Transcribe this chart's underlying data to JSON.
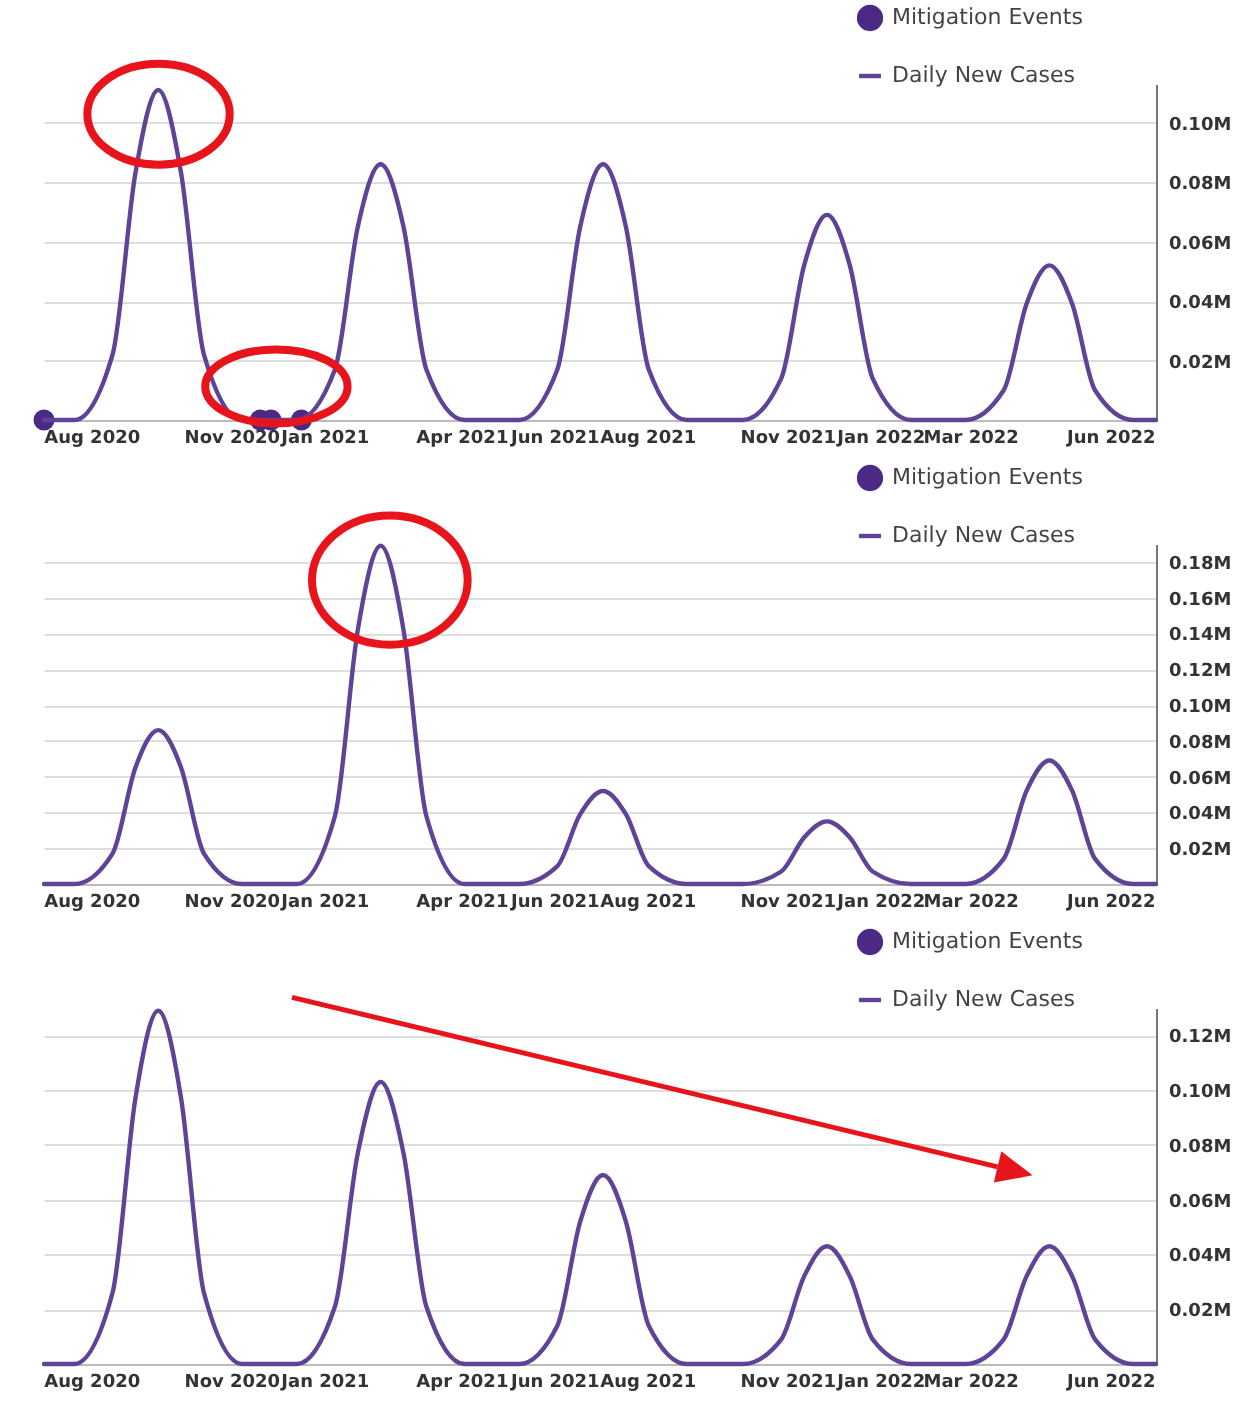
{
  "chart_data": [
    {
      "type": "line",
      "xlim": [
        "2020-07-01",
        "2022-07-01"
      ],
      "ylim": [
        0,
        113000
      ],
      "legend": "top right",
      "grid": "y",
      "xticks": [
        {
          "value": "2020-08-01",
          "label": "Aug 2020"
        },
        {
          "value": "2020-11-01",
          "label": "Nov 2020"
        },
        {
          "value": "2021-01-01",
          "label": "Jan 2021"
        },
        {
          "value": "2021-04-01",
          "label": "Apr 2021"
        },
        {
          "value": "2021-06-01",
          "label": "Jun 2021"
        },
        {
          "value": "2021-08-01",
          "label": "Aug 2021"
        },
        {
          "value": "2021-11-01",
          "label": "Nov 2021"
        },
        {
          "value": "2022-01-01",
          "label": "Jan 2022"
        },
        {
          "value": "2022-03-01",
          "label": "Mar 2022"
        },
        {
          "value": "2022-06-01",
          "label": "Jun 2022"
        }
      ],
      "yticks": [
        {
          "value": 20000,
          "label": "0.02M"
        },
        {
          "value": 40000,
          "label": "0.04M"
        },
        {
          "value": 60000,
          "label": "0.06M"
        },
        {
          "value": 80000,
          "label": "0.08M"
        },
        {
          "value": 100000,
          "label": "0.10M"
        }
      ],
      "series": [
        {
          "name": "Mitigation Events",
          "type": "scatter",
          "marker": "circle",
          "color": "#4b2a85",
          "x": [
            "2020-07-01",
            "2020-11-20",
            "2020-11-27",
            "2020-12-17"
          ],
          "values": [
            0,
            0,
            0,
            0
          ]
        },
        {
          "name": "Daily New Cases",
          "type": "line",
          "color": "#5e4396",
          "x": [
            "2020-07-01",
            "2020-07-21",
            "2020-08-15",
            "2020-08-30",
            "2020-09-14",
            "2020-09-29",
            "2020-10-14",
            "2020-11-08",
            "2020-12-14",
            "2021-01-08",
            "2021-01-23",
            "2021-02-07",
            "2021-02-22",
            "2021-03-09",
            "2021-04-03",
            "2021-05-09",
            "2021-06-03",
            "2021-06-18",
            "2021-07-03",
            "2021-07-18",
            "2021-08-02",
            "2021-08-27",
            "2021-10-03",
            "2021-10-28",
            "2021-11-12",
            "2021-11-27",
            "2021-12-12",
            "2021-12-27",
            "2022-01-21",
            "2022-02-26",
            "2022-03-23",
            "2022-04-07",
            "2022-04-22",
            "2022-05-07",
            "2022-05-22",
            "2022-06-16",
            "2022-07-01"
          ],
          "values": [
            0,
            0,
            22000,
            83000,
            111000,
            83000,
            22000,
            0,
            0,
            17000,
            65000,
            86000,
            65000,
            17000,
            0,
            0,
            17000,
            65000,
            86000,
            65000,
            17000,
            0,
            0,
            14000,
            52000,
            69000,
            52000,
            14000,
            0,
            0,
            10000,
            39000,
            52000,
            39000,
            10000,
            0,
            0
          ]
        }
      ]
    },
    {
      "type": "line",
      "xlim": [
        "2020-07-01",
        "2022-07-01"
      ],
      "ylim": [
        0,
        190000
      ],
      "legend": "top right",
      "grid": "y",
      "xticks": [
        {
          "value": "2020-08-01",
          "label": "Aug 2020"
        },
        {
          "value": "2020-11-01",
          "label": "Nov 2020"
        },
        {
          "value": "2021-01-01",
          "label": "Jan 2021"
        },
        {
          "value": "2021-04-01",
          "label": "Apr 2021"
        },
        {
          "value": "2021-06-01",
          "label": "Jun 2021"
        },
        {
          "value": "2021-08-01",
          "label": "Aug 2021"
        },
        {
          "value": "2021-11-01",
          "label": "Nov 2021"
        },
        {
          "value": "2022-01-01",
          "label": "Jan 2022"
        },
        {
          "value": "2022-03-01",
          "label": "Mar 2022"
        },
        {
          "value": "2022-06-01",
          "label": "Jun 2022"
        }
      ],
      "yticks": [
        {
          "value": 20000,
          "label": "0.02M"
        },
        {
          "value": 40000,
          "label": "0.04M"
        },
        {
          "value": 60000,
          "label": "0.06M"
        },
        {
          "value": 80000,
          "label": "0.08M"
        },
        {
          "value": 100000,
          "label": "0.10M"
        },
        {
          "value": 120000,
          "label": "0.12M"
        },
        {
          "value": 140000,
          "label": "0.14M"
        },
        {
          "value": 160000,
          "label": "0.16M"
        },
        {
          "value": 180000,
          "label": "0.18M"
        }
      ],
      "series": [
        {
          "name": "Mitigation Events",
          "type": "scatter",
          "marker": "circle",
          "color": "#4b2a85"
        },
        {
          "name": "Daily New Cases",
          "type": "line",
          "color": "#5e4396",
          "x": [
            "2020-07-01",
            "2020-07-21",
            "2020-08-15",
            "2020-08-30",
            "2020-09-14",
            "2020-09-29",
            "2020-10-14",
            "2020-11-08",
            "2020-12-14",
            "2021-01-08",
            "2021-01-23",
            "2021-02-07",
            "2021-02-22",
            "2021-03-09",
            "2021-04-03",
            "2021-05-09",
            "2021-06-03",
            "2021-06-18",
            "2021-07-03",
            "2021-07-18",
            "2021-08-02",
            "2021-08-27",
            "2021-10-03",
            "2021-10-28",
            "2021-11-12",
            "2021-11-27",
            "2021-12-12",
            "2021-12-27",
            "2022-01-21",
            "2022-02-26",
            "2022-03-23",
            "2022-04-07",
            "2022-04-22",
            "2022-05-07",
            "2022-05-22",
            "2022-06-16",
            "2022-07-01"
          ],
          "values": [
            0,
            0,
            17000,
            65000,
            86000,
            65000,
            17000,
            0,
            0,
            38000,
            142000,
            189000,
            142000,
            38000,
            0,
            0,
            10000,
            39000,
            52000,
            39000,
            10000,
            0,
            0,
            7000,
            26000,
            35000,
            26000,
            7000,
            0,
            0,
            14000,
            52000,
            69000,
            52000,
            14000,
            0,
            0
          ]
        }
      ]
    },
    {
      "type": "line",
      "xlim": [
        "2020-07-01",
        "2022-07-01"
      ],
      "ylim": [
        0,
        130000
      ],
      "legend": "top right",
      "grid": "y",
      "xticks": [
        {
          "value": "2020-08-01",
          "label": "Aug 2020"
        },
        {
          "value": "2020-11-01",
          "label": "Nov 2020"
        },
        {
          "value": "2021-01-01",
          "label": "Jan 2021"
        },
        {
          "value": "2021-04-01",
          "label": "Apr 2021"
        },
        {
          "value": "2021-06-01",
          "label": "Jun 2021"
        },
        {
          "value": "2021-08-01",
          "label": "Aug 2021"
        },
        {
          "value": "2021-11-01",
          "label": "Nov 2021"
        },
        {
          "value": "2022-01-01",
          "label": "Jan 2022"
        },
        {
          "value": "2022-03-01",
          "label": "Mar 2022"
        },
        {
          "value": "2022-06-01",
          "label": "Jun 2022"
        }
      ],
      "yticks": [
        {
          "value": 20000,
          "label": "0.02M"
        },
        {
          "value": 40000,
          "label": "0.04M"
        },
        {
          "value": 60000,
          "label": "0.06M"
        },
        {
          "value": 80000,
          "label": "0.08M"
        },
        {
          "value": 100000,
          "label": "0.10M"
        },
        {
          "value": 120000,
          "label": "0.12M"
        }
      ],
      "series": [
        {
          "name": "Mitigation Events",
          "type": "scatter",
          "marker": "circle",
          "color": "#4b2a85"
        },
        {
          "name": "Daily New Cases",
          "type": "line",
          "color": "#5e4396",
          "x": [
            "2020-07-01",
            "2020-07-21",
            "2020-08-15",
            "2020-08-30",
            "2020-09-14",
            "2020-09-29",
            "2020-10-14",
            "2020-11-08",
            "2020-12-14",
            "2021-01-08",
            "2021-01-23",
            "2021-02-07",
            "2021-02-22",
            "2021-03-09",
            "2021-04-03",
            "2021-05-09",
            "2021-06-03",
            "2021-06-18",
            "2021-07-03",
            "2021-07-18",
            "2021-08-02",
            "2021-08-27",
            "2021-10-03",
            "2021-10-28",
            "2021-11-12",
            "2021-11-27",
            "2021-12-12",
            "2021-12-27",
            "2022-01-21",
            "2022-02-26",
            "2022-03-23",
            "2022-04-07",
            "2022-04-22",
            "2022-05-07",
            "2022-05-22",
            "2022-06-16",
            "2022-07-01"
          ],
          "values": [
            0,
            0,
            26000,
            97000,
            129000,
            97000,
            26000,
            0,
            0,
            21000,
            77000,
            103000,
            77000,
            21000,
            0,
            0,
            14000,
            52000,
            69000,
            52000,
            14000,
            0,
            0,
            9000,
            32000,
            43000,
            32000,
            9000,
            0,
            0,
            9000,
            32000,
            43000,
            32000,
            9000,
            0,
            0
          ]
        }
      ]
    }
  ]
}
